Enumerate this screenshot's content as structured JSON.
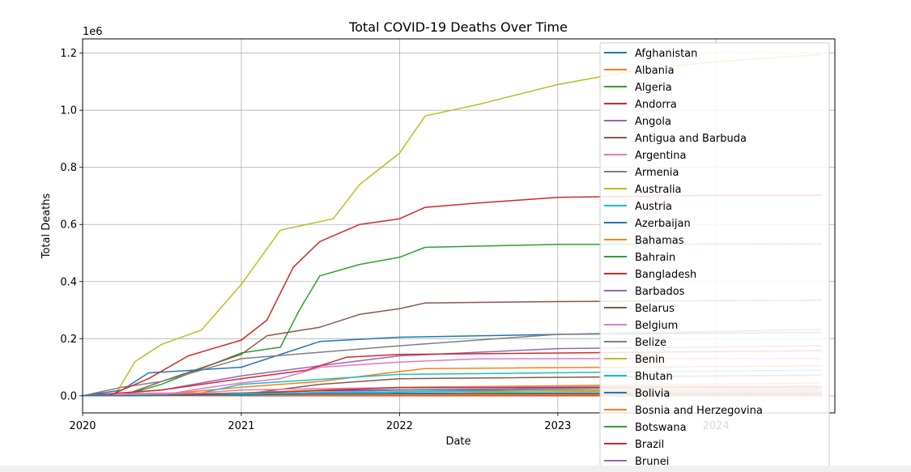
{
  "chart_data": {
    "type": "line",
    "title": "Total COVID-19 Deaths Over Time",
    "xlabel": "Date",
    "ylabel": "Total Deaths",
    "y_offset_label": "1e6",
    "xlim": [
      "2020-01-01",
      "2024-10-01"
    ],
    "ylim": [
      -60000,
      1250000
    ],
    "x_ticks": [
      "2020",
      "2021",
      "2022",
      "2023",
      "2024"
    ],
    "y_ticks": [
      "0.0",
      "0.2",
      "0.4",
      "0.6",
      "0.8",
      "1.0",
      "1.2"
    ],
    "y_tick_values": [
      0,
      200000,
      400000,
      600000,
      800000,
      1000000,
      1200000
    ],
    "grid": true,
    "legend_position": "right, overlapping plot and extending below",
    "series": [
      {
        "name": "Afghanistan",
        "color": "#1f77b4",
        "x": [
          "2020-01-01",
          "2020-03-01",
          "2020-05-01",
          "2020-07-01",
          "2021-01-01",
          "2021-07-01",
          "2022-01-01",
          "2023-01-01",
          "2024-01-01",
          "2024-09-01"
        ],
        "y": [
          0,
          0,
          500,
          1200,
          2400,
          6500,
          7300,
          7800,
          7900,
          7990
        ]
      },
      {
        "name": "Albania",
        "color": "#ff7f0e",
        "x": [
          "2020-01-01",
          "2020-03-01",
          "2020-07-01",
          "2021-01-01",
          "2021-07-01",
          "2022-01-01",
          "2023-01-01",
          "2024-09-01"
        ],
        "y": [
          0,
          0,
          200,
          1200,
          2450,
          3100,
          3590,
          3600
        ]
      },
      {
        "name": "Algeria",
        "color": "#2ca02c",
        "x": [
          "2020-01-01",
          "2020-03-01",
          "2020-07-01",
          "2021-01-01",
          "2021-07-01",
          "2022-01-01",
          "2023-01-01",
          "2024-09-01"
        ],
        "y": [
          0,
          0,
          1000,
          2800,
          4300,
          6300,
          6880,
          6880
        ]
      },
      {
        "name": "Andorra",
        "color": "#d62728",
        "x": [
          "2020-01-01",
          "2020-03-01",
          "2020-07-01",
          "2021-01-01",
          "2022-01-01",
          "2024-09-01"
        ],
        "y": [
          0,
          0,
          50,
          80,
          140,
          160
        ]
      },
      {
        "name": "Angola",
        "color": "#9467bd",
        "x": [
          "2020-01-01",
          "2020-03-01",
          "2020-07-01",
          "2021-01-01",
          "2021-07-01",
          "2022-01-01",
          "2023-01-01",
          "2024-09-01"
        ],
        "y": [
          0,
          0,
          50,
          400,
          1100,
          1800,
          1930,
          1940
        ]
      },
      {
        "name": "Antigua and Barbuda",
        "color": "#8c564b",
        "x": [
          "2020-01-01",
          "2021-01-01",
          "2022-01-01",
          "2024-09-01"
        ],
        "y": [
          0,
          10,
          110,
          150
        ]
      },
      {
        "name": "Argentina",
        "color": "#e377c2",
        "x": [
          "2020-01-01",
          "2020-04-01",
          "2020-07-01",
          "2020-10-01",
          "2021-01-01",
          "2021-04-01",
          "2021-07-01",
          "2022-01-01",
          "2022-07-01",
          "2023-01-01",
          "2024-09-01"
        ],
        "y": [
          0,
          100,
          2600,
          25000,
          45000,
          60000,
          100000,
          118000,
          129000,
          130000,
          130700
        ]
      },
      {
        "name": "Armenia",
        "color": "#7f7f7f",
        "x": [
          "2020-01-01",
          "2020-04-01",
          "2020-07-01",
          "2021-01-01",
          "2021-07-01",
          "2022-01-01",
          "2024-09-01"
        ],
        "y": [
          0,
          20,
          700,
          3000,
          4500,
          7800,
          8800
        ]
      },
      {
        "name": "Australia",
        "color": "#bcbd22",
        "x": [
          "2020-01-01",
          "2020-04-01",
          "2021-01-01",
          "2022-01-01",
          "2022-04-01",
          "2022-07-01",
          "2023-01-01",
          "2024-01-01",
          "2024-09-01"
        ],
        "y": [
          0,
          100,
          900,
          2300,
          6500,
          10000,
          17000,
          22000,
          24000
        ]
      },
      {
        "name": "Austria",
        "color": "#17becf",
        "x": [
          "2020-01-01",
          "2020-03-01",
          "2020-07-01",
          "2020-10-01",
          "2021-01-01",
          "2021-07-01",
          "2022-01-01",
          "2023-01-01",
          "2024-09-01"
        ],
        "y": [
          0,
          0,
          700,
          900,
          7000,
          10700,
          13500,
          21500,
          22500
        ]
      },
      {
        "name": "Azerbaijan",
        "color": "#1f77b4",
        "x": [
          "2020-01-01",
          "2020-04-01",
          "2020-07-01",
          "2021-01-01",
          "2021-07-01",
          "2022-01-01",
          "2024-09-01"
        ],
        "y": [
          0,
          10,
          400,
          2900,
          4900,
          8700,
          10000
        ]
      },
      {
        "name": "Bahamas",
        "color": "#ff7f0e",
        "x": [
          "2020-01-01",
          "2021-01-01",
          "2022-01-01",
          "2024-09-01"
        ],
        "y": [
          0,
          160,
          800,
          850
        ]
      },
      {
        "name": "Bahrain",
        "color": "#2ca02c",
        "x": [
          "2020-01-01",
          "2021-01-01",
          "2021-07-01",
          "2024-09-01"
        ],
        "y": [
          0,
          350,
          1380,
          1540
        ]
      },
      {
        "name": "Bangladesh",
        "color": "#d62728",
        "x": [
          "2020-01-01",
          "2020-04-01",
          "2020-07-01",
          "2021-01-01",
          "2021-07-01",
          "2022-01-01",
          "2024-09-01"
        ],
        "y": [
          0,
          100,
          2700,
          7900,
          18800,
          28100,
          29500
        ]
      },
      {
        "name": "Barbados",
        "color": "#9467bd",
        "x": [
          "2020-01-01",
          "2021-01-01",
          "2022-01-01",
          "2024-09-01"
        ],
        "y": [
          0,
          10,
          230,
          590
        ]
      },
      {
        "name": "Belarus",
        "color": "#8c564b",
        "x": [
          "2020-01-01",
          "2020-07-01",
          "2021-01-01",
          "2022-01-01",
          "2024-09-01"
        ],
        "y": [
          0,
          600,
          1500,
          5600,
          7100
        ]
      },
      {
        "name": "Belgium",
        "color": "#e377c2",
        "x": [
          "2020-01-01",
          "2020-03-01",
          "2020-05-01",
          "2020-10-01",
          "2021-01-01",
          "2021-07-01",
          "2022-01-01",
          "2023-01-01",
          "2024-09-01"
        ],
        "y": [
          0,
          0,
          9000,
          10500,
          20000,
          25000,
          28500,
          33000,
          34000
        ]
      },
      {
        "name": "Belize",
        "color": "#7f7f7f",
        "x": [
          "2020-01-01",
          "2021-01-01",
          "2022-01-01",
          "2024-09-01"
        ],
        "y": [
          0,
          300,
          600,
          690
        ]
      },
      {
        "name": "Benin",
        "color": "#bcbd22",
        "x": [
          "2020-01-01",
          "2021-01-01",
          "2022-01-01",
          "2024-09-01"
        ],
        "y": [
          0,
          50,
          160,
          165
        ]
      },
      {
        "name": "Bhutan",
        "color": "#17becf",
        "x": [
          "2020-01-01",
          "2021-01-01",
          "2022-01-01",
          "2024-09-01"
        ],
        "y": [
          0,
          1,
          5,
          21
        ]
      },
      {
        "name": "Bolivia",
        "color": "#1f77b4",
        "x": [
          "2020-01-01",
          "2020-07-01",
          "2021-01-01",
          "2021-07-01",
          "2022-01-01",
          "2024-09-01"
        ],
        "y": [
          0,
          2000,
          9200,
          17700,
          20400,
          22400
        ]
      },
      {
        "name": "Bosnia and Herzegovina",
        "color": "#ff7f0e",
        "x": [
          "2020-01-01",
          "2020-10-01",
          "2021-01-01",
          "2021-07-01",
          "2022-01-01",
          "2024-09-01"
        ],
        "y": [
          0,
          500,
          4200,
          9600,
          14000,
          16400
        ]
      },
      {
        "name": "Botswana",
        "color": "#2ca02c",
        "x": [
          "2020-01-01",
          "2021-01-01",
          "2021-07-01",
          "2022-01-01",
          "2024-09-01"
        ],
        "y": [
          0,
          70,
          1500,
          2500,
          2800
        ]
      },
      {
        "name": "Brazil",
        "color": "#d62728",
        "x": [
          "2020-01-01",
          "2020-03-01",
          "2020-06-01",
          "2020-09-01",
          "2021-01-01",
          "2021-03-01",
          "2021-05-01",
          "2021-07-01",
          "2021-10-01",
          "2022-01-01",
          "2022-03-01",
          "2022-07-01",
          "2023-01-01",
          "2024-01-01",
          "2024-09-01"
        ],
        "y": [
          0,
          0,
          60000,
          140000,
          195000,
          265000,
          450000,
          540000,
          600000,
          620000,
          660000,
          675000,
          695000,
          702000,
          702000
        ]
      },
      {
        "name": "Brunei",
        "color": "#9467bd",
        "x": [
          "2020-01-01",
          "2021-01-01",
          "2022-01-01",
          "2024-09-01"
        ],
        "y": [
          0,
          3,
          95,
          225
        ]
      }
    ],
    "unlabeled_series": [
      {
        "color": "#bcbd22",
        "x": [
          "2020-01-01",
          "2020-03-15",
          "2020-05-01",
          "2020-07-01",
          "2020-10-01",
          "2021-01-01",
          "2021-04-01",
          "2021-08-01",
          "2021-10-01",
          "2022-01-01",
          "2022-03-01",
          "2022-07-01",
          "2023-01-01",
          "2023-07-01",
          "2024-01-01",
          "2024-09-01"
        ],
        "y": [
          0,
          0,
          120000,
          180000,
          230000,
          390000,
          580000,
          620000,
          740000,
          850000,
          980000,
          1020000,
          1090000,
          1140000,
          1170000,
          1195000
        ]
      },
      {
        "color": "#2ca02c",
        "x": [
          "2020-01-01",
          "2020-04-01",
          "2020-07-01",
          "2021-01-01",
          "2021-04-01",
          "2021-05-15",
          "2021-07-01",
          "2021-10-01",
          "2022-01-01",
          "2022-03-01",
          "2023-01-01",
          "2024-09-01"
        ],
        "y": [
          0,
          0,
          40000,
          150000,
          170000,
          300000,
          420000,
          460000,
          485000,
          520000,
          530000,
          532000
        ]
      },
      {
        "color": "#8c564b",
        "x": [
          "2020-01-01",
          "2020-04-01",
          "2020-07-01",
          "2021-01-01",
          "2021-03-01",
          "2021-07-01",
          "2021-10-01",
          "2022-01-01",
          "2022-03-01",
          "2023-01-01",
          "2024-09-01"
        ],
        "y": [
          0,
          0,
          50000,
          145000,
          210000,
          240000,
          285000,
          305000,
          325000,
          330000,
          335000
        ]
      },
      {
        "color": "#1f77b4",
        "x": [
          "2020-01-01",
          "2020-04-01",
          "2020-06-01",
          "2021-01-01",
          "2021-07-01",
          "2022-01-01",
          "2023-01-01",
          "2024-09-01"
        ],
        "y": [
          0,
          20000,
          80000,
          100000,
          190000,
          205000,
          215000,
          222000
        ]
      },
      {
        "color": "#7f7f7f",
        "x": [
          "2020-01-01",
          "2020-04-01",
          "2020-07-01",
          "2021-01-01",
          "2022-01-01",
          "2023-01-01",
          "2024-09-01"
        ],
        "y": [
          0,
          30000,
          50000,
          130000,
          175000,
          215000,
          232000
        ]
      },
      {
        "color": "#9467bd",
        "x": [
          "2020-01-01",
          "2020-07-01",
          "2021-01-01",
          "2021-07-01",
          "2022-01-01",
          "2023-01-01",
          "2024-09-01"
        ],
        "y": [
          0,
          20000,
          70000,
          105000,
          140000,
          165000,
          175000
        ]
      },
      {
        "color": "#d62728",
        "x": [
          "2020-01-01",
          "2020-07-01",
          "2021-01-01",
          "2021-06-01",
          "2021-09-01",
          "2022-01-01",
          "2024-09-01"
        ],
        "y": [
          0,
          20000,
          60000,
          90000,
          135000,
          145000,
          158000
        ]
      },
      {
        "color": "#ff7f0e",
        "x": [
          "2020-01-01",
          "2020-07-01",
          "2021-01-01",
          "2021-07-01",
          "2022-01-01",
          "2022-03-01",
          "2024-09-01"
        ],
        "y": [
          0,
          5000,
          30000,
          50000,
          85000,
          95000,
          105000
        ]
      },
      {
        "color": "#17becf",
        "x": [
          "2020-01-01",
          "2020-10-01",
          "2021-01-01",
          "2022-01-01",
          "2024-09-01"
        ],
        "y": [
          0,
          10000,
          40000,
          75000,
          90000
        ]
      },
      {
        "color": "#8c564b",
        "x": [
          "2020-01-01",
          "2021-01-01",
          "2021-07-01",
          "2022-01-01",
          "2024-09-01"
        ],
        "y": [
          0,
          5000,
          40000,
          60000,
          72000
        ]
      },
      {
        "color": "#bcbd22",
        "x": [
          "2020-01-01",
          "2021-01-01",
          "2022-01-01",
          "2024-09-01"
        ],
        "y": [
          0,
          10000,
          30000,
          45000
        ]
      },
      {
        "color": "#e377c2",
        "x": [
          "2020-01-01",
          "2021-01-01",
          "2022-01-01",
          "2024-09-01"
        ],
        "y": [
          0,
          5000,
          20000,
          35000
        ]
      }
    ]
  }
}
